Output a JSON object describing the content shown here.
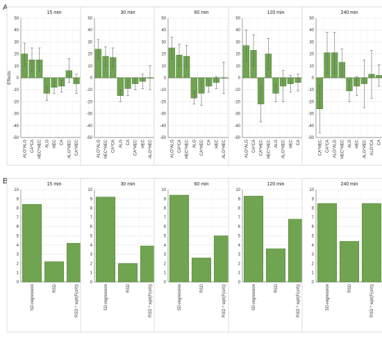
{
  "panel_labels": [
    "A",
    "B"
  ],
  "chart_data": [
    {
      "type": "bar",
      "panel": "A",
      "title": "15 min",
      "ylabel": "Effects",
      "ylim": [
        -50,
        50
      ],
      "grid": true,
      "categories": [
        "ALG*ALG",
        "CA*CA",
        "HEC*HEC",
        "ALG",
        "HEC",
        "CA",
        "ALG*HEC",
        "CA*HEC",
        "ALG*CA"
      ],
      "values": [
        20,
        15,
        15,
        -13,
        -8,
        -7,
        6,
        -5,
        -3
      ],
      "error_low": [
        10,
        5,
        5,
        -19,
        -13,
        -12,
        -4,
        -13,
        -13
      ],
      "error_high": [
        29,
        25,
        25,
        -7,
        -3,
        -2,
        16,
        3,
        10
      ]
    },
    {
      "type": "bar",
      "panel": "A",
      "title": "30 min",
      "ylabel": "",
      "ylim": [
        -50,
        50
      ],
      "grid": true,
      "categories": [
        "ALG*ALG",
        "HEC*HEC",
        "CA*CA",
        "ALG",
        "CA",
        "CA*HEC",
        "HEC",
        "ALG*HEC",
        "ALG*CA"
      ],
      "values": [
        24,
        18,
        17,
        -15,
        -9,
        -5,
        -3,
        0,
        0
      ],
      "error_low": [
        16,
        10,
        9,
        -20,
        -15,
        -10,
        -9,
        -10,
        -11
      ],
      "error_high": [
        32,
        26,
        25,
        -10,
        -3,
        0,
        3,
        10,
        10
      ]
    },
    {
      "type": "bar",
      "panel": "A",
      "title": "60 min",
      "ylabel": "",
      "ylim": [
        -50,
        50
      ],
      "grid": true,
      "categories": [
        "ALG*ALG",
        "CA*CA",
        "HEC*HEC",
        "ALG",
        "CA*HEC",
        "CA",
        "HEC",
        "ALG*HEC",
        "ALG*CA"
      ],
      "values": [
        25,
        19,
        18,
        -17,
        -13,
        -7,
        -4,
        0,
        -1
      ],
      "error_low": [
        16,
        10,
        9,
        -22,
        -23,
        -12,
        -9,
        -13,
        -14
      ],
      "error_high": [
        34,
        28,
        27,
        -12,
        -3,
        -2,
        1,
        13,
        12
      ]
    },
    {
      "type": "bar",
      "panel": "A",
      "title": "120 min",
      "ylabel": "",
      "ylim": [
        -50,
        50
      ],
      "grid": true,
      "categories": [
        "ALG*ALG",
        "CA*CA",
        "CA*HEC",
        "HEC*HEC",
        "ALG",
        "ALG*HEC",
        "HEC",
        "CA",
        "ALG*CA"
      ],
      "values": [
        27,
        23,
        -22,
        20,
        -13,
        -7,
        -5,
        -4,
        0
      ],
      "error_low": [
        14,
        10,
        -37,
        7,
        -20,
        -20,
        -12,
        -11,
        -16
      ],
      "error_high": [
        40,
        36,
        -7,
        33,
        -6,
        6,
        2,
        3,
        16
      ]
    },
    {
      "type": "bar",
      "panel": "A",
      "title": "240 min",
      "ylabel": "",
      "ylim": [
        -50,
        50
      ],
      "grid": true,
      "categories": [
        "CA*HEC",
        "CA*CA",
        "ALG*ALG",
        "HEC*HEC",
        "ALG",
        "HEC",
        "ALG*HEC",
        "ALG*CA",
        "CA"
      ],
      "values": [
        -26,
        21,
        21,
        13,
        -11,
        -7,
        -5,
        3,
        2
      ],
      "error_low": [
        -46,
        4,
        4,
        2,
        -20,
        -15,
        -25,
        -17,
        -7
      ],
      "error_high": [
        -6,
        38,
        38,
        24,
        -2,
        1,
        15,
        23,
        11
      ]
    },
    {
      "type": "bar",
      "panel": "B",
      "title": "15 min",
      "ylabel": "",
      "ylim": [
        0,
        10
      ],
      "grid": true,
      "categories": [
        "SD-regression",
        "RSD",
        "RSD * sqrt(F(crit))"
      ],
      "values": [
        8.4,
        2.2,
        4.2
      ]
    },
    {
      "type": "bar",
      "panel": "B",
      "title": "30 min",
      "ylabel": "",
      "ylim": [
        0,
        10
      ],
      "grid": true,
      "categories": [
        "SD-regression",
        "RSD",
        "RSD * sqrt(F(crit))"
      ],
      "values": [
        9.2,
        2.0,
        3.9
      ]
    },
    {
      "type": "bar",
      "panel": "B",
      "title": "60 min",
      "ylabel": "",
      "ylim": [
        0,
        10
      ],
      "grid": true,
      "categories": [
        "SD-regression",
        "RSD",
        "RSD * sqrt(F(crit))"
      ],
      "values": [
        9.4,
        2.6,
        5.0
      ]
    },
    {
      "type": "bar",
      "panel": "B",
      "title": "120 min",
      "ylabel": "",
      "ylim": [
        0,
        10
      ],
      "grid": true,
      "categories": [
        "SD-regression",
        "RSD",
        "RSD * sqrt(F(crit))"
      ],
      "values": [
        9.3,
        3.6,
        6.8
      ]
    },
    {
      "type": "bar",
      "panel": "B",
      "title": "240 min",
      "ylabel": "",
      "ylim": [
        0,
        10
      ],
      "grid": true,
      "categories": [
        "SD-regression",
        "RSD",
        "RSD * sqrt(F(crit))"
      ],
      "values": [
        8.5,
        4.4,
        8.5
      ]
    }
  ],
  "colors": {
    "bar": "#70a451",
    "bar_stroke": "#4e7f36",
    "grid": "#e3e3e3",
    "axis": "#777777",
    "error": "#666666"
  }
}
